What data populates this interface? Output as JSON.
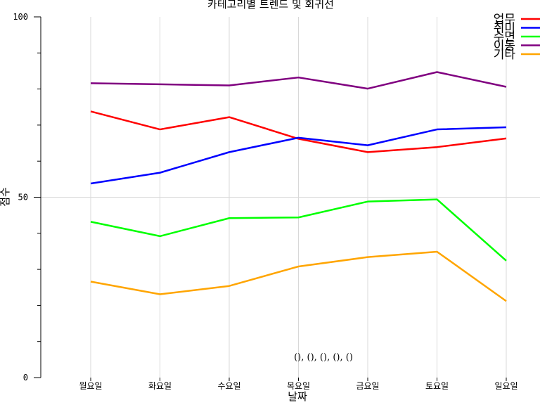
{
  "chart_data": {
    "type": "line",
    "title": "카테고리별 트렌드 및 회귀선",
    "xlabel": "날짜",
    "ylabel": "점수",
    "categories": [
      "월요일",
      "화요일",
      "수요일",
      "목요일",
      "금요일",
      "토요일",
      "일요일"
    ],
    "ylim": [
      0,
      100
    ],
    "yticks": [
      0,
      50,
      100
    ],
    "grid": true,
    "legend_position": "top-right",
    "annotation": "(), (), (), (), ()",
    "series": [
      {
        "name": "업무",
        "color": "#ff0000",
        "values": [
          73.8,
          68.8,
          72.2,
          66.2,
          62.5,
          63.9,
          66.3
        ]
      },
      {
        "name": "취미",
        "color": "#0000ff",
        "values": [
          53.8,
          56.8,
          62.5,
          66.5,
          64.4,
          68.8,
          69.4
        ]
      },
      {
        "name": "수면",
        "color": "#00ff00",
        "values": [
          43.2,
          39.2,
          44.2,
          44.4,
          48.8,
          49.4,
          32.4
        ]
      },
      {
        "name": "이동",
        "color": "#800080",
        "values": [
          81.6,
          81.3,
          81.0,
          83.2,
          80.1,
          84.7,
          80.6
        ]
      },
      {
        "name": "기타",
        "color": "#ffa500",
        "values": [
          26.6,
          23.1,
          25.4,
          30.8,
          33.4,
          34.9,
          21.2
        ]
      }
    ]
  }
}
